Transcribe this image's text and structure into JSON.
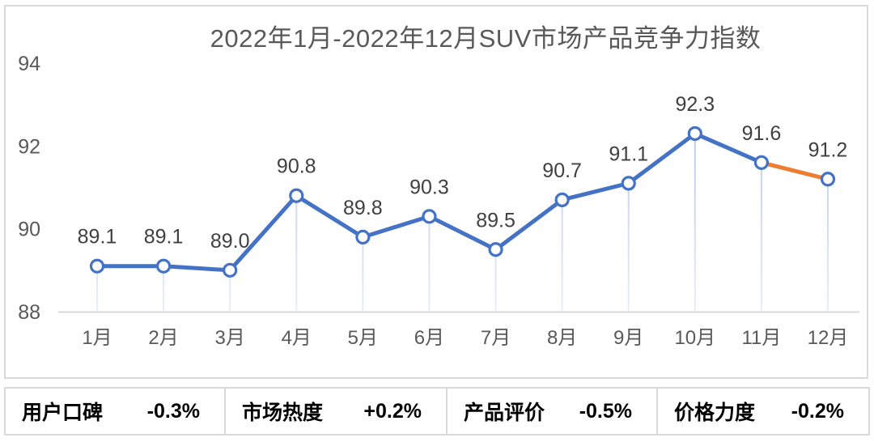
{
  "chart_data": {
    "type": "line",
    "title": "2022年1月-2022年12月SUV市场产品竞争力指数",
    "categories": [
      "1月",
      "2月",
      "3月",
      "4月",
      "5月",
      "6月",
      "7月",
      "8月",
      "9月",
      "10月",
      "11月",
      "12月"
    ],
    "values": [
      89.1,
      89.1,
      89.0,
      90.8,
      89.8,
      90.3,
      89.5,
      90.7,
      91.1,
      92.3,
      91.6,
      91.2
    ],
    "y_ticks": [
      88,
      90,
      92,
      94
    ],
    "ylim": [
      88,
      94
    ],
    "grid": false,
    "legend": "none",
    "data_labels": true,
    "highlight_segment": {
      "from_index": 10,
      "to_index": 11
    }
  },
  "colors": {
    "line": "#4472C4",
    "highlight": "#ED7D31",
    "marker_fill": "#ffffff",
    "marker_ring": "#4472C4",
    "drop_line": "#B4C7E7",
    "axis_line": "#d9d9d9",
    "axis_text": "#595959",
    "data_label_text": "#404040",
    "border": "#d9d9d9",
    "metric_text": "#000000"
  },
  "footer": {
    "metrics": [
      {
        "label": "用户口碑",
        "value": "-0.3%"
      },
      {
        "label": "市场热度",
        "value": "+0.2%"
      },
      {
        "label": "产品评价",
        "value": "-0.5%"
      },
      {
        "label": "价格力度",
        "value": "-0.2%"
      }
    ]
  }
}
